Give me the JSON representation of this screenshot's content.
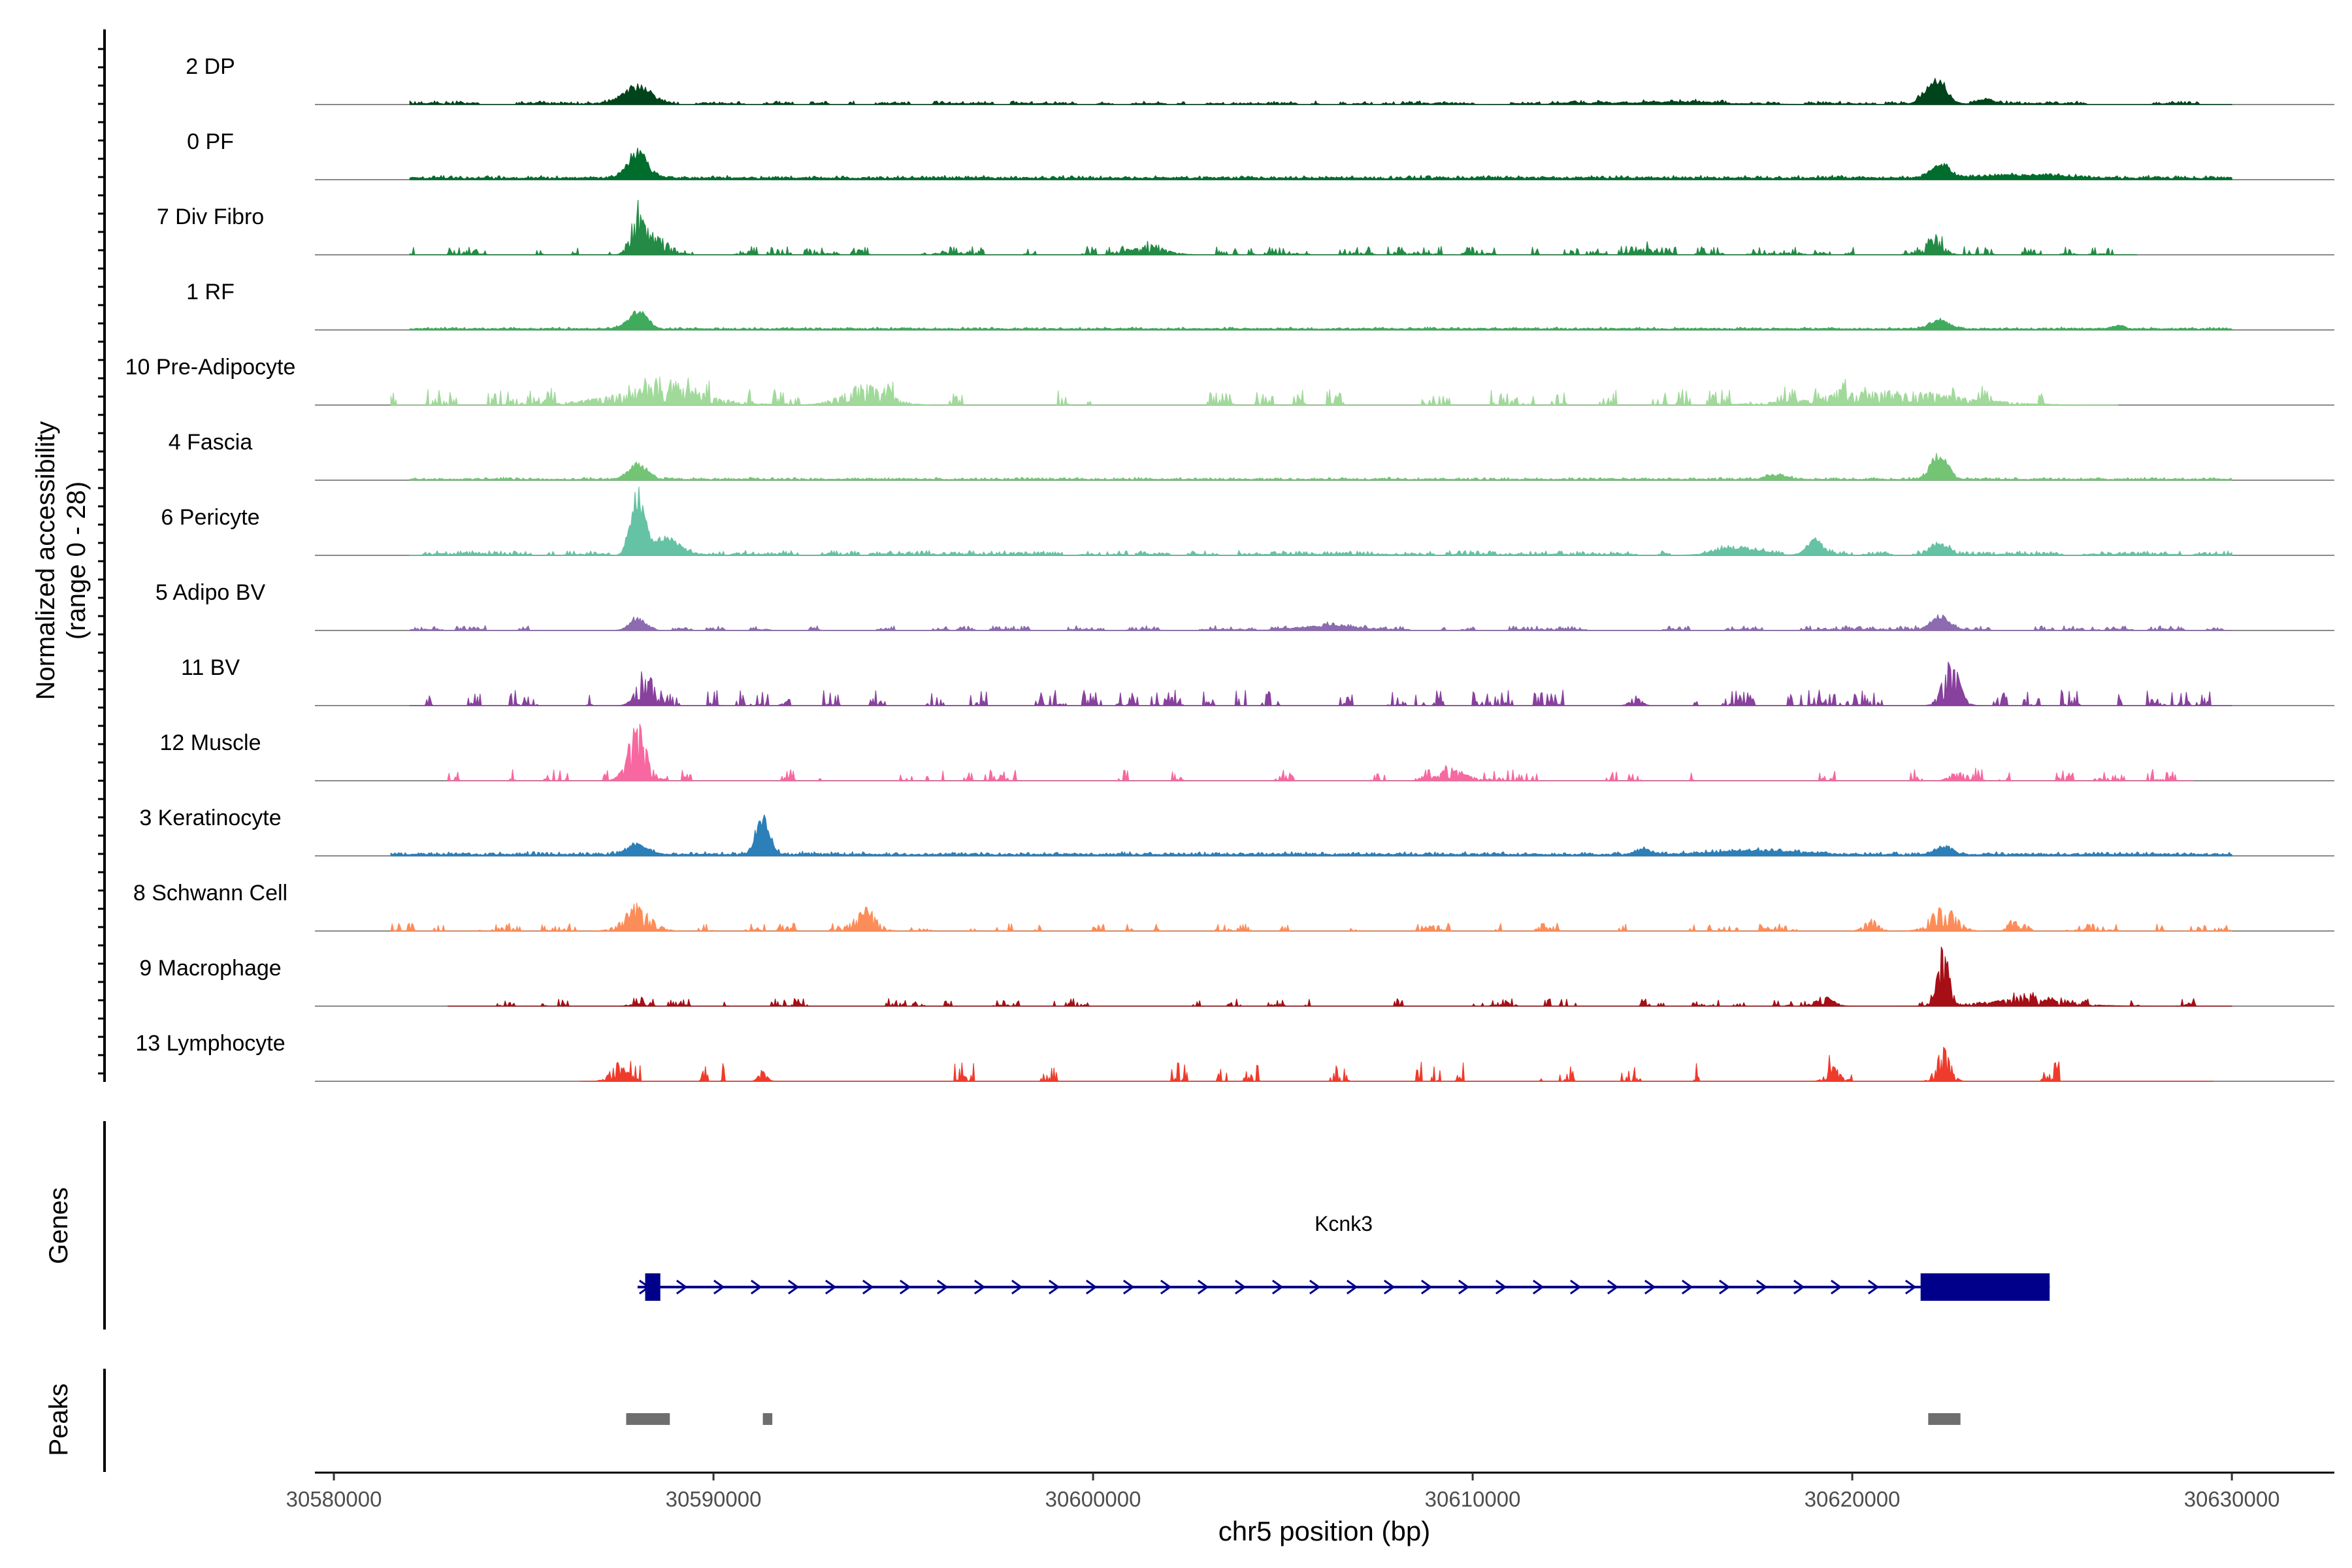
{
  "chart_data": {
    "type": "area",
    "ylabel_line1": "Normalized accessibility",
    "ylabel_line2": "(range 0 - 28)",
    "y_range": [
      0,
      28
    ],
    "xlabel": "chr5 position (bp)",
    "xlim": [
      30579500,
      30632700
    ],
    "x_ticks": [
      30580000,
      30590000,
      30600000,
      30610000,
      30620000,
      30630000
    ],
    "x_tick_labels": [
      "30580000",
      "30590000",
      "30600000",
      "30610000",
      "30620000",
      "30630000"
    ],
    "genes_label": "Genes",
    "peaks_label": "Peaks",
    "tracks": [
      {
        "name": "2 DP",
        "color": "#00441b",
        "start": 30582000,
        "end": 30630000,
        "base": 0.3,
        "noise": 0.7,
        "sparse": 0.3,
        "peaks": [
          [
            30588000,
            8.0,
            500
          ],
          [
            30615000,
            0.8,
            2500
          ],
          [
            30622200,
            11.0,
            400
          ],
          [
            30623500,
            2.5,
            300
          ]
        ]
      },
      {
        "name": "0 PF",
        "color": "#006d2c",
        "start": 30582000,
        "end": 30630000,
        "base": 0.6,
        "noise": 0.6,
        "sparse": 0.0,
        "peaks": [
          [
            30588000,
            13.0,
            350
          ],
          [
            30622300,
            6.5,
            350
          ],
          [
            30624500,
            1.5,
            1500
          ]
        ]
      },
      {
        "name": "7 Div Fibro",
        "color": "#238b45",
        "start": 30582000,
        "end": 30627500,
        "base": 0.2,
        "noise": 2.0,
        "sparse": 0.45,
        "peaks": [
          [
            30588000,
            22.0,
            250
          ],
          [
            30588500,
            8.0,
            400
          ],
          [
            30601500,
            4.0,
            600
          ],
          [
            30614500,
            3.0,
            300
          ],
          [
            30622200,
            7.0,
            300
          ]
        ]
      },
      {
        "name": "1 RF",
        "color": "#41ab5d",
        "start": 30582000,
        "end": 30630000,
        "base": 0.4,
        "noise": 0.4,
        "sparse": 0.0,
        "peaks": [
          [
            30588000,
            8.0,
            350
          ],
          [
            30622300,
            4.0,
            350
          ],
          [
            30627000,
            1.5,
            200
          ]
        ]
      },
      {
        "name": "10 Pre-Adipocyte",
        "color": "#a1d99b",
        "start": 30581500,
        "end": 30627000,
        "base": 0.0,
        "noise": 4.0,
        "sparse": 0.55,
        "peaks": [
          [
            30588500,
            7.0,
            1800
          ],
          [
            30594000,
            9.0,
            800
          ],
          [
            30621000,
            6.0,
            2500
          ]
        ]
      },
      {
        "name": "4 Fascia",
        "color": "#74c476",
        "start": 30582000,
        "end": 30630000,
        "base": 0.3,
        "noise": 0.5,
        "sparse": 0.0,
        "peaks": [
          [
            30588000,
            7.0,
            350
          ],
          [
            30622300,
            12.0,
            300
          ],
          [
            30618000,
            2.0,
            400
          ]
        ]
      },
      {
        "name": "6 Pericyte",
        "color": "#66c2a4",
        "start": 30582000,
        "end": 30630000,
        "base": 0.3,
        "noise": 1.0,
        "sparse": 0.2,
        "peaks": [
          [
            30588000,
            26.0,
            250
          ],
          [
            30588700,
            8.0,
            500
          ],
          [
            30619000,
            7.0,
            300
          ],
          [
            30622300,
            5.0,
            300
          ],
          [
            30617000,
            3.0,
            800
          ]
        ]
      },
      {
        "name": "5 Adipo BV",
        "color": "#8c6bb1",
        "start": 30582000,
        "end": 30630000,
        "base": 0.3,
        "noise": 1.0,
        "sparse": 0.35,
        "peaks": [
          [
            30588000,
            5.0,
            300
          ],
          [
            30622300,
            7.0,
            300
          ],
          [
            30606000,
            2.0,
            1000
          ]
        ]
      },
      {
        "name": "11 BV",
        "color": "#88419d",
        "start": 30582000,
        "end": 30630000,
        "base": 0.0,
        "noise": 4.0,
        "sparse": 0.65,
        "peaks": [
          [
            30588200,
            16.0,
            300
          ],
          [
            30622600,
            20.0,
            300
          ],
          [
            30614300,
            4.0,
            200
          ]
        ]
      },
      {
        "name": "12 Muscle",
        "color": "#f768a1",
        "start": 30583000,
        "end": 30629000,
        "base": 0.0,
        "noise": 3.0,
        "sparse": 0.72,
        "peaks": [
          [
            30588000,
            24.0,
            350
          ],
          [
            30609500,
            5.0,
            500
          ],
          [
            30622800,
            4.0,
            300
          ]
        ]
      },
      {
        "name": "3 Keratinocyte",
        "color": "#2c7fb8",
        "start": 30581500,
        "end": 30630000,
        "base": 0.5,
        "noise": 0.7,
        "sparse": 0.0,
        "peaks": [
          [
            30591300,
            18.0,
            250
          ],
          [
            30588000,
            5.0,
            350
          ],
          [
            30622400,
            4.0,
            300
          ],
          [
            30614500,
            2.5,
            300
          ],
          [
            30617500,
            2.0,
            1500
          ]
        ]
      },
      {
        "name": "8 Schwann Cell",
        "color": "#fc8d59",
        "start": 30581500,
        "end": 30630000,
        "base": 0.0,
        "noise": 2.0,
        "sparse": 0.55,
        "peaks": [
          [
            30588000,
            10.0,
            500
          ],
          [
            30594000,
            9.0,
            400
          ],
          [
            30622400,
            11.0,
            450
          ],
          [
            30620500,
            5.0,
            250
          ],
          [
            30624200,
            5.0,
            150
          ]
        ]
      },
      {
        "name": "9 Macrophage",
        "color": "#a50f15",
        "start": 30583000,
        "end": 30630000,
        "base": 0.0,
        "noise": 2.0,
        "sparse": 0.62,
        "peaks": [
          [
            30622400,
            28.0,
            200
          ],
          [
            30588000,
            5.0,
            200
          ],
          [
            30619300,
            4.0,
            300
          ],
          [
            30624500,
            3.0,
            1500
          ]
        ]
      },
      {
        "name": "13 Lymphocyte",
        "color": "#ef3b2c",
        "start": 30586500,
        "end": 30629500,
        "base": 0.0,
        "noise": 5.0,
        "sparse": 0.85,
        "peaks": [
          [
            30587500,
            8.0,
            300
          ],
          [
            30622400,
            14.0,
            250
          ],
          [
            30591300,
            5.0,
            150
          ],
          [
            30619500,
            6.0,
            250
          ]
        ]
      }
    ],
    "genes": [
      {
        "name": "Kcnk3",
        "start": 30588000,
        "end": 30625200,
        "strand": "+",
        "color": "#00008b",
        "exons": [
          [
            30588200,
            30588600
          ],
          [
            30621800,
            30625200
          ]
        ]
      }
    ],
    "peaks": [
      [
        30587700,
        30588850
      ],
      [
        30591300,
        30591550
      ],
      [
        30622000,
        30622850
      ]
    ]
  }
}
